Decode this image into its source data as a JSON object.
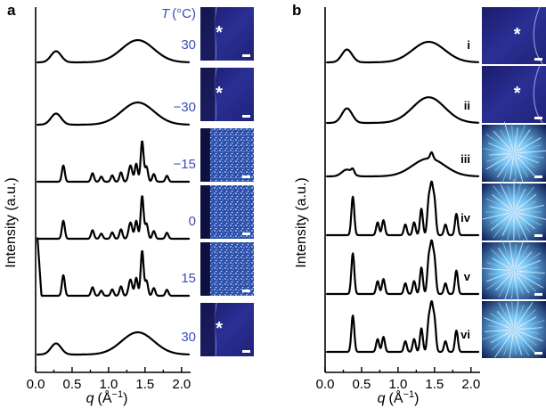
{
  "chart_data": [
    {
      "type": "line",
      "panel": "a",
      "xlabel_q": "q",
      "xlabel_unit": "(Å",
      "xlabel_exp": "−1",
      "xlabel_close": ")",
      "ylabel": "Intensity (a.u.)",
      "legend_header_symbol": "T",
      "legend_header_unit": "(°C)",
      "xlim": [
        0.0,
        2.1
      ],
      "x_ticks": [
        "0.0",
        "0.5",
        "1.0",
        "1.5",
        "2.0"
      ],
      "x_tick_values": [
        0.0,
        0.5,
        1.0,
        1.5,
        2.0
      ],
      "series": [
        {
          "name": "30",
          "phase": "amorphous",
          "peaks": [
            [
              0.28,
              0.26,
              0.07
            ],
            [
              1.4,
              0.52,
              0.22
            ]
          ]
        },
        {
          "name": "−30",
          "phase": "amorphous",
          "peaks": [
            [
              0.28,
              0.26,
              0.07
            ],
            [
              1.4,
              0.52,
              0.22
            ]
          ]
        },
        {
          "name": "−15",
          "phase": "crystalline",
          "peaks": [
            [
              0.38,
              0.38,
              0.02
            ],
            [
              0.78,
              0.2,
              0.02
            ],
            [
              0.9,
              0.12,
              0.02
            ],
            [
              1.05,
              0.15,
              0.02
            ],
            [
              1.17,
              0.22,
              0.02
            ],
            [
              1.3,
              0.38,
              0.025
            ],
            [
              1.38,
              0.42,
              0.02
            ],
            [
              1.46,
              0.95,
              0.02
            ],
            [
              1.52,
              0.35,
              0.02
            ],
            [
              1.62,
              0.18,
              0.02
            ],
            [
              1.8,
              0.14,
              0.02
            ]
          ]
        },
        {
          "name": "0",
          "phase": "crystalline",
          "peaks": [
            [
              0.38,
              0.42,
              0.02
            ],
            [
              0.78,
              0.2,
              0.02
            ],
            [
              0.9,
              0.12,
              0.02
            ],
            [
              1.05,
              0.15,
              0.02
            ],
            [
              1.17,
              0.22,
              0.02
            ],
            [
              1.3,
              0.38,
              0.025
            ],
            [
              1.38,
              0.42,
              0.02
            ],
            [
              1.46,
              1.0,
              0.02
            ],
            [
              1.52,
              0.35,
              0.02
            ],
            [
              1.62,
              0.18,
              0.02
            ],
            [
              1.8,
              0.14,
              0.02
            ]
          ]
        },
        {
          "name": "15",
          "phase": "crystalline",
          "peaks": [
            [
              0.38,
              0.48,
              0.02
            ],
            [
              0.78,
              0.2,
              0.02
            ],
            [
              0.9,
              0.12,
              0.02
            ],
            [
              1.05,
              0.15,
              0.02
            ],
            [
              1.17,
              0.22,
              0.02
            ],
            [
              1.3,
              0.38,
              0.025
            ],
            [
              1.38,
              0.42,
              0.02
            ],
            [
              1.46,
              1.05,
              0.02
            ],
            [
              1.52,
              0.35,
              0.02
            ],
            [
              1.62,
              0.18,
              0.02
            ],
            [
              1.8,
              0.14,
              0.02
            ]
          ]
        },
        {
          "name": "30",
          "phase": "amorphous",
          "peaks": [
            [
              0.28,
              0.26,
              0.07
            ],
            [
              1.4,
              0.52,
              0.22
            ]
          ]
        }
      ]
    },
    {
      "type": "line",
      "panel": "b",
      "xlabel_q": "q",
      "xlabel_unit": "(Å",
      "xlabel_exp": "−1",
      "xlabel_close": ")",
      "ylabel": "Intensity (a.u.)",
      "xlim": [
        0.0,
        2.1
      ],
      "x_ticks": [
        "0.0",
        "0.5",
        "1.0",
        "1.5",
        "2.0"
      ],
      "x_tick_values": [
        0.0,
        0.5,
        1.0,
        1.5,
        2.0
      ],
      "series": [
        {
          "name": "i",
          "phase": "amorphous",
          "peaks": [
            [
              0.3,
              0.3,
              0.07
            ],
            [
              1.42,
              0.48,
              0.22
            ]
          ]
        },
        {
          "name": "ii",
          "phase": "amorphous",
          "peaks": [
            [
              0.3,
              0.34,
              0.07
            ],
            [
              1.42,
              0.6,
              0.22
            ]
          ]
        },
        {
          "name": "iii",
          "phase": "mixed",
          "peaks": [
            [
              0.3,
              0.16,
              0.07
            ],
            [
              1.42,
              0.42,
              0.22
            ],
            [
              0.38,
              0.1,
              0.02
            ],
            [
              1.46,
              0.15,
              0.02
            ]
          ]
        },
        {
          "name": "iv",
          "phase": "crystalline",
          "peaks": [
            [
              0.38,
              0.9,
              0.02
            ],
            [
              0.72,
              0.3,
              0.02
            ],
            [
              0.8,
              0.35,
              0.02
            ],
            [
              1.1,
              0.25,
              0.02
            ],
            [
              1.22,
              0.3,
              0.02
            ],
            [
              1.32,
              0.62,
              0.02
            ],
            [
              1.42,
              0.78,
              0.02
            ],
            [
              1.46,
              1.05,
              0.02
            ],
            [
              1.5,
              0.75,
              0.02
            ],
            [
              1.65,
              0.25,
              0.02
            ],
            [
              1.8,
              0.5,
              0.02
            ]
          ]
        },
        {
          "name": "v",
          "phase": "crystalline",
          "peaks": [
            [
              0.38,
              0.95,
              0.02
            ],
            [
              0.72,
              0.3,
              0.02
            ],
            [
              0.8,
              0.35,
              0.02
            ],
            [
              1.1,
              0.25,
              0.02
            ],
            [
              1.22,
              0.3,
              0.02
            ],
            [
              1.32,
              0.62,
              0.02
            ],
            [
              1.42,
              0.78,
              0.02
            ],
            [
              1.46,
              1.05,
              0.02
            ],
            [
              1.5,
              0.75,
              0.02
            ],
            [
              1.65,
              0.25,
              0.02
            ],
            [
              1.8,
              0.55,
              0.02
            ]
          ]
        },
        {
          "name": "vi",
          "phase": "crystalline",
          "peaks": [
            [
              0.38,
              0.85,
              0.02
            ],
            [
              0.72,
              0.3,
              0.02
            ],
            [
              0.8,
              0.35,
              0.02
            ],
            [
              1.1,
              0.25,
              0.02
            ],
            [
              1.22,
              0.3,
              0.02
            ],
            [
              1.32,
              0.55,
              0.02
            ],
            [
              1.42,
              0.7,
              0.02
            ],
            [
              1.46,
              1.0,
              0.02
            ],
            [
              1.5,
              0.7,
              0.02
            ],
            [
              1.65,
              0.25,
              0.02
            ],
            [
              1.8,
              0.5,
              0.02
            ]
          ]
        }
      ]
    }
  ],
  "micrographs": {
    "a": [
      {
        "type": "amorphous-edge",
        "asterisk": "*"
      },
      {
        "type": "amorphous-edge",
        "asterisk": "*"
      },
      {
        "type": "speckle-edge",
        "asterisk": ""
      },
      {
        "type": "speckle-edge",
        "asterisk": ""
      },
      {
        "type": "speckle-edge",
        "asterisk": ""
      },
      {
        "type": "amorphous-edge",
        "asterisk": "*"
      }
    ],
    "b": [
      {
        "type": "amorphous-curve",
        "asterisk": "*"
      },
      {
        "type": "amorphous-curve",
        "asterisk": "*"
      },
      {
        "type": "spherulite",
        "asterisk": ""
      },
      {
        "type": "spherulite",
        "asterisk": ""
      },
      {
        "type": "spherulite",
        "asterisk": ""
      },
      {
        "type": "spherulite",
        "asterisk": ""
      }
    ]
  },
  "colors": {
    "trace": "#000000",
    "label_blue": "#3a4db5",
    "micrograph_dark": "#14154f",
    "micrograph_mid": "#2b2f8f",
    "crystal_light": "#cfe6ff",
    "crystal_cyan": "#5fb4e8"
  },
  "panel_labels": [
    "a",
    "b"
  ]
}
